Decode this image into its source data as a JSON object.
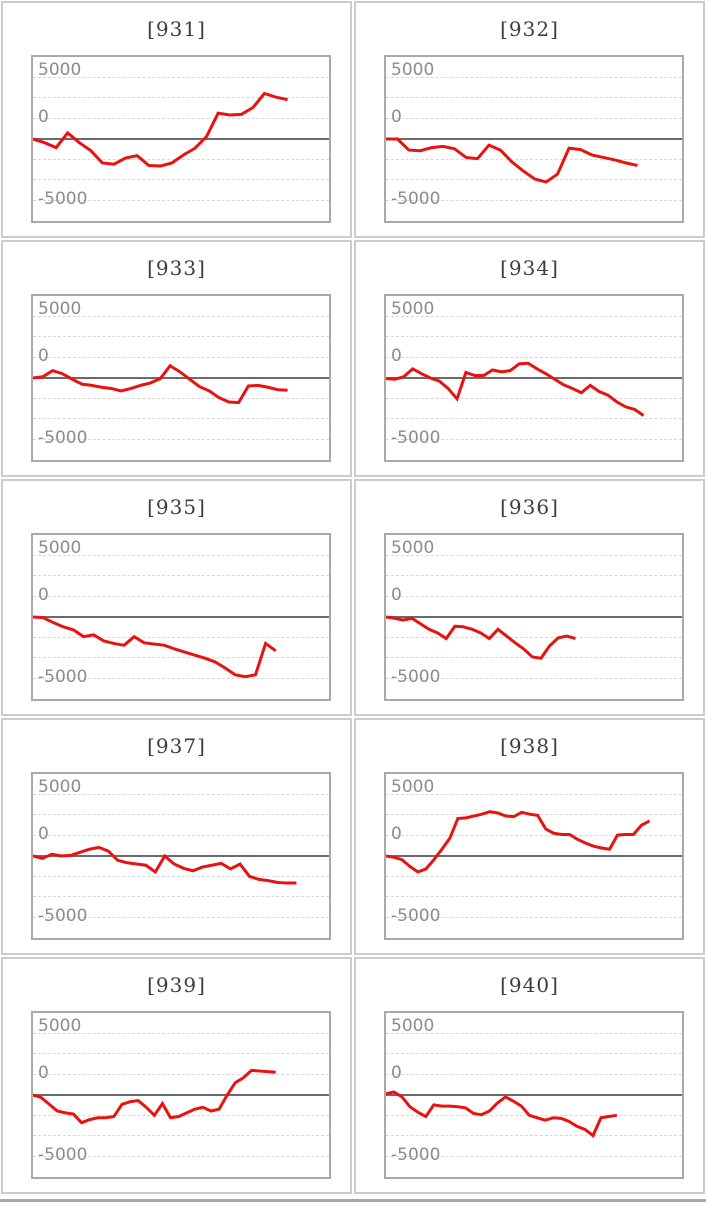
{
  "page": {
    "background": "#ffffff"
  },
  "colors": {
    "line": "#e8120e",
    "zero_line": "#6b6b6b",
    "gridline": "#d8d8d8",
    "plot_border": "#a9a9a9",
    "cell_border": "#cccccc",
    "axis_label": "#8c8c8c",
    "title_text": "#3d3d3d"
  },
  "layout": {
    "grid": "2x5",
    "legend": "none",
    "grid_on": true
  },
  "chart_data": [
    {
      "type": "line",
      "title": "[931]",
      "y_ticks": [
        "5000",
        "0",
        "-5000"
      ],
      "ylim": [
        -6667,
        6667
      ],
      "zero_baseline": true,
      "x_end_fraction": 0.86,
      "values": [
        0,
        -300,
        -700,
        500,
        -300,
        -950,
        -1950,
        -2050,
        -1550,
        -1350,
        -2150,
        -2200,
        -1950,
        -1300,
        -750,
        200,
        2100,
        1950,
        2000,
        2550,
        3700,
        3400,
        3200
      ]
    },
    {
      "type": "line",
      "title": "[932]",
      "y_ticks": [
        "5000",
        "0",
        "-5000"
      ],
      "ylim": [
        -6667,
        6667
      ],
      "zero_baseline": true,
      "x_end_fraction": 0.85,
      "values": [
        0,
        0,
        -900,
        -950,
        -700,
        -600,
        -800,
        -1500,
        -1600,
        -500,
        -900,
        -1850,
        -2600,
        -3250,
        -3500,
        -2850,
        -750,
        -850,
        -1300,
        -1500,
        -1700,
        -1950,
        -2150
      ]
    },
    {
      "type": "line",
      "title": "[933]",
      "y_ticks": [
        "5000",
        "0",
        "-5000"
      ],
      "ylim": [
        -6667,
        6667
      ],
      "zero_baseline": true,
      "x_end_fraction": 0.86,
      "values": [
        0,
        100,
        600,
        350,
        -100,
        -500,
        -600,
        -750,
        -850,
        -1050,
        -850,
        -600,
        -400,
        -50,
        1000,
        500,
        -100,
        -700,
        -1050,
        -1600,
        -1950,
        -2000,
        -650,
        -600,
        -750,
        -950,
        -1000
      ]
    },
    {
      "type": "line",
      "title": "[934]",
      "y_ticks": [
        "5000",
        "0",
        "-5000"
      ],
      "ylim": [
        -6667,
        6667
      ],
      "zero_baseline": true,
      "x_end_fraction": 0.87,
      "values": [
        -50,
        -100,
        100,
        750,
        350,
        0,
        -250,
        -850,
        -1700,
        450,
        200,
        200,
        650,
        500,
        600,
        1150,
        1200,
        750,
        350,
        -100,
        -550,
        -850,
        -1200,
        -600,
        -1100,
        -1400,
        -1950,
        -2350,
        -2550,
        -3050
      ]
    },
    {
      "type": "line",
      "title": "[935]",
      "y_ticks": [
        "5000",
        "0",
        "-5000"
      ],
      "ylim": [
        -6667,
        6667
      ],
      "zero_baseline": true,
      "x_end_fraction": 0.82,
      "values": [
        0,
        -50,
        -450,
        -800,
        -1050,
        -1600,
        -1450,
        -1950,
        -2150,
        -2300,
        -1600,
        -2100,
        -2200,
        -2300,
        -2600,
        -2850,
        -3100,
        -3350,
        -3650,
        -4150,
        -4700,
        -4850,
        -4700,
        -2150,
        -2750
      ]
    },
    {
      "type": "line",
      "title": "[936]",
      "y_ticks": [
        "5000",
        "0",
        "-5000"
      ],
      "ylim": [
        -6667,
        6667
      ],
      "zero_baseline": true,
      "x_end_fraction": 0.64,
      "values": [
        0,
        -100,
        -250,
        -100,
        -550,
        -1000,
        -1300,
        -1750,
        -750,
        -800,
        -1000,
        -1300,
        -1750,
        -1000,
        -1550,
        -2100,
        -2600,
        -3250,
        -3350,
        -2350,
        -1700,
        -1550,
        -1750
      ]
    },
    {
      "type": "line",
      "title": "[937]",
      "y_ticks": [
        "5000",
        "0",
        "-5000"
      ],
      "ylim": [
        -6667,
        6667
      ],
      "zero_baseline": true,
      "x_end_fraction": 0.89,
      "values": [
        0,
        -200,
        150,
        0,
        50,
        300,
        550,
        700,
        400,
        -350,
        -550,
        -650,
        -750,
        -1300,
        0,
        -650,
        -1000,
        -1200,
        -900,
        -750,
        -600,
        -1050,
        -650,
        -1650,
        -1900,
        -2000,
        -2150,
        -2200,
        -2200
      ]
    },
    {
      "type": "line",
      "title": "[938]",
      "y_ticks": [
        "5000",
        "0",
        "-5000"
      ],
      "ylim": [
        -6667,
        6667
      ],
      "zero_baseline": true,
      "x_end_fraction": 0.89,
      "values": [
        0,
        -100,
        -300,
        -850,
        -1300,
        -1050,
        -300,
        550,
        1450,
        3050,
        3100,
        3250,
        3400,
        3600,
        3500,
        3250,
        3200,
        3550,
        3400,
        3300,
        2200,
        1850,
        1750,
        1750,
        1350,
        1050,
        800,
        650,
        550,
        1700,
        1750,
        1750,
        2500,
        2850
      ]
    },
    {
      "type": "line",
      "title": "[939]",
      "y_ticks": [
        "5000",
        "0",
        "-5000"
      ],
      "ylim": [
        -6667,
        6667
      ],
      "zero_baseline": true,
      "x_end_fraction": 0.82,
      "values": [
        0,
        -200,
        -750,
        -1300,
        -1450,
        -1550,
        -2250,
        -2000,
        -1850,
        -1850,
        -1750,
        -750,
        -550,
        -450,
        -1000,
        -1650,
        -700,
        -1850,
        -1750,
        -1450,
        -1150,
        -1000,
        -1300,
        -1150,
        0,
        1000,
        1400,
        2000,
        1950,
        1900,
        1850
      ]
    },
    {
      "type": "line",
      "title": "[940]",
      "y_ticks": [
        "5000",
        "0",
        "-5000"
      ],
      "ylim": [
        -6667,
        6667
      ],
      "zero_baseline": true,
      "x_end_fraction": 0.78,
      "values": [
        100,
        250,
        -150,
        -950,
        -1400,
        -1750,
        -800,
        -900,
        -900,
        -950,
        -1050,
        -1500,
        -1600,
        -1300,
        -650,
        -150,
        -500,
        -900,
        -1650,
        -1850,
        -2050,
        -1850,
        -1900,
        -2150,
        -2550,
        -2800,
        -3300,
        -1850,
        -1750,
        -1650
      ]
    }
  ]
}
